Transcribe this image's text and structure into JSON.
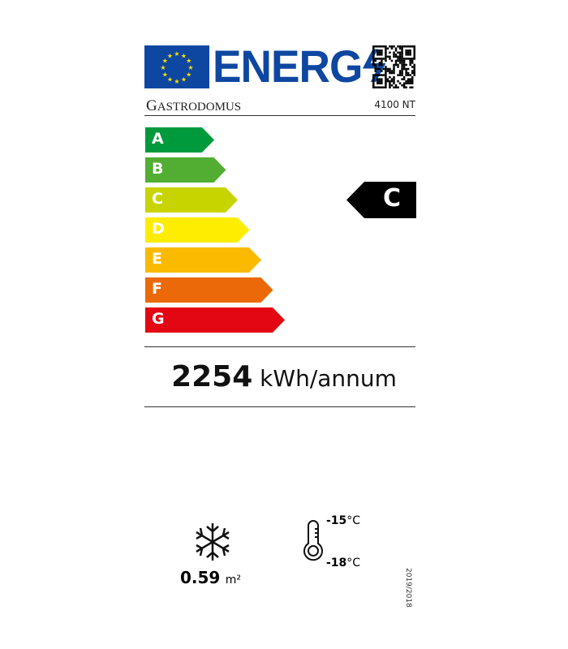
{
  "header": {
    "logo_text": "ENERG",
    "brand_initial": "G",
    "brand_rest": "ASTRODOMUS",
    "model": "4100 NT"
  },
  "scale": [
    {
      "label": "A",
      "color": "#009a3d"
    },
    {
      "label": "B",
      "color": "#52ae32"
    },
    {
      "label": "C",
      "color": "#c8d400"
    },
    {
      "label": "D",
      "color": "#ffed00"
    },
    {
      "label": "E",
      "color": "#fbba00"
    },
    {
      "label": "F",
      "color": "#eb6909"
    },
    {
      "label": "G",
      "color": "#e30613"
    }
  ],
  "rating": "C",
  "consumption": {
    "value": "2254",
    "unit": "kWh/annum"
  },
  "area": {
    "value": "0.59",
    "unit": "m²"
  },
  "temps": {
    "high": "-15",
    "low": "-18",
    "unit": "°C"
  },
  "regulation": "2019/2018"
}
